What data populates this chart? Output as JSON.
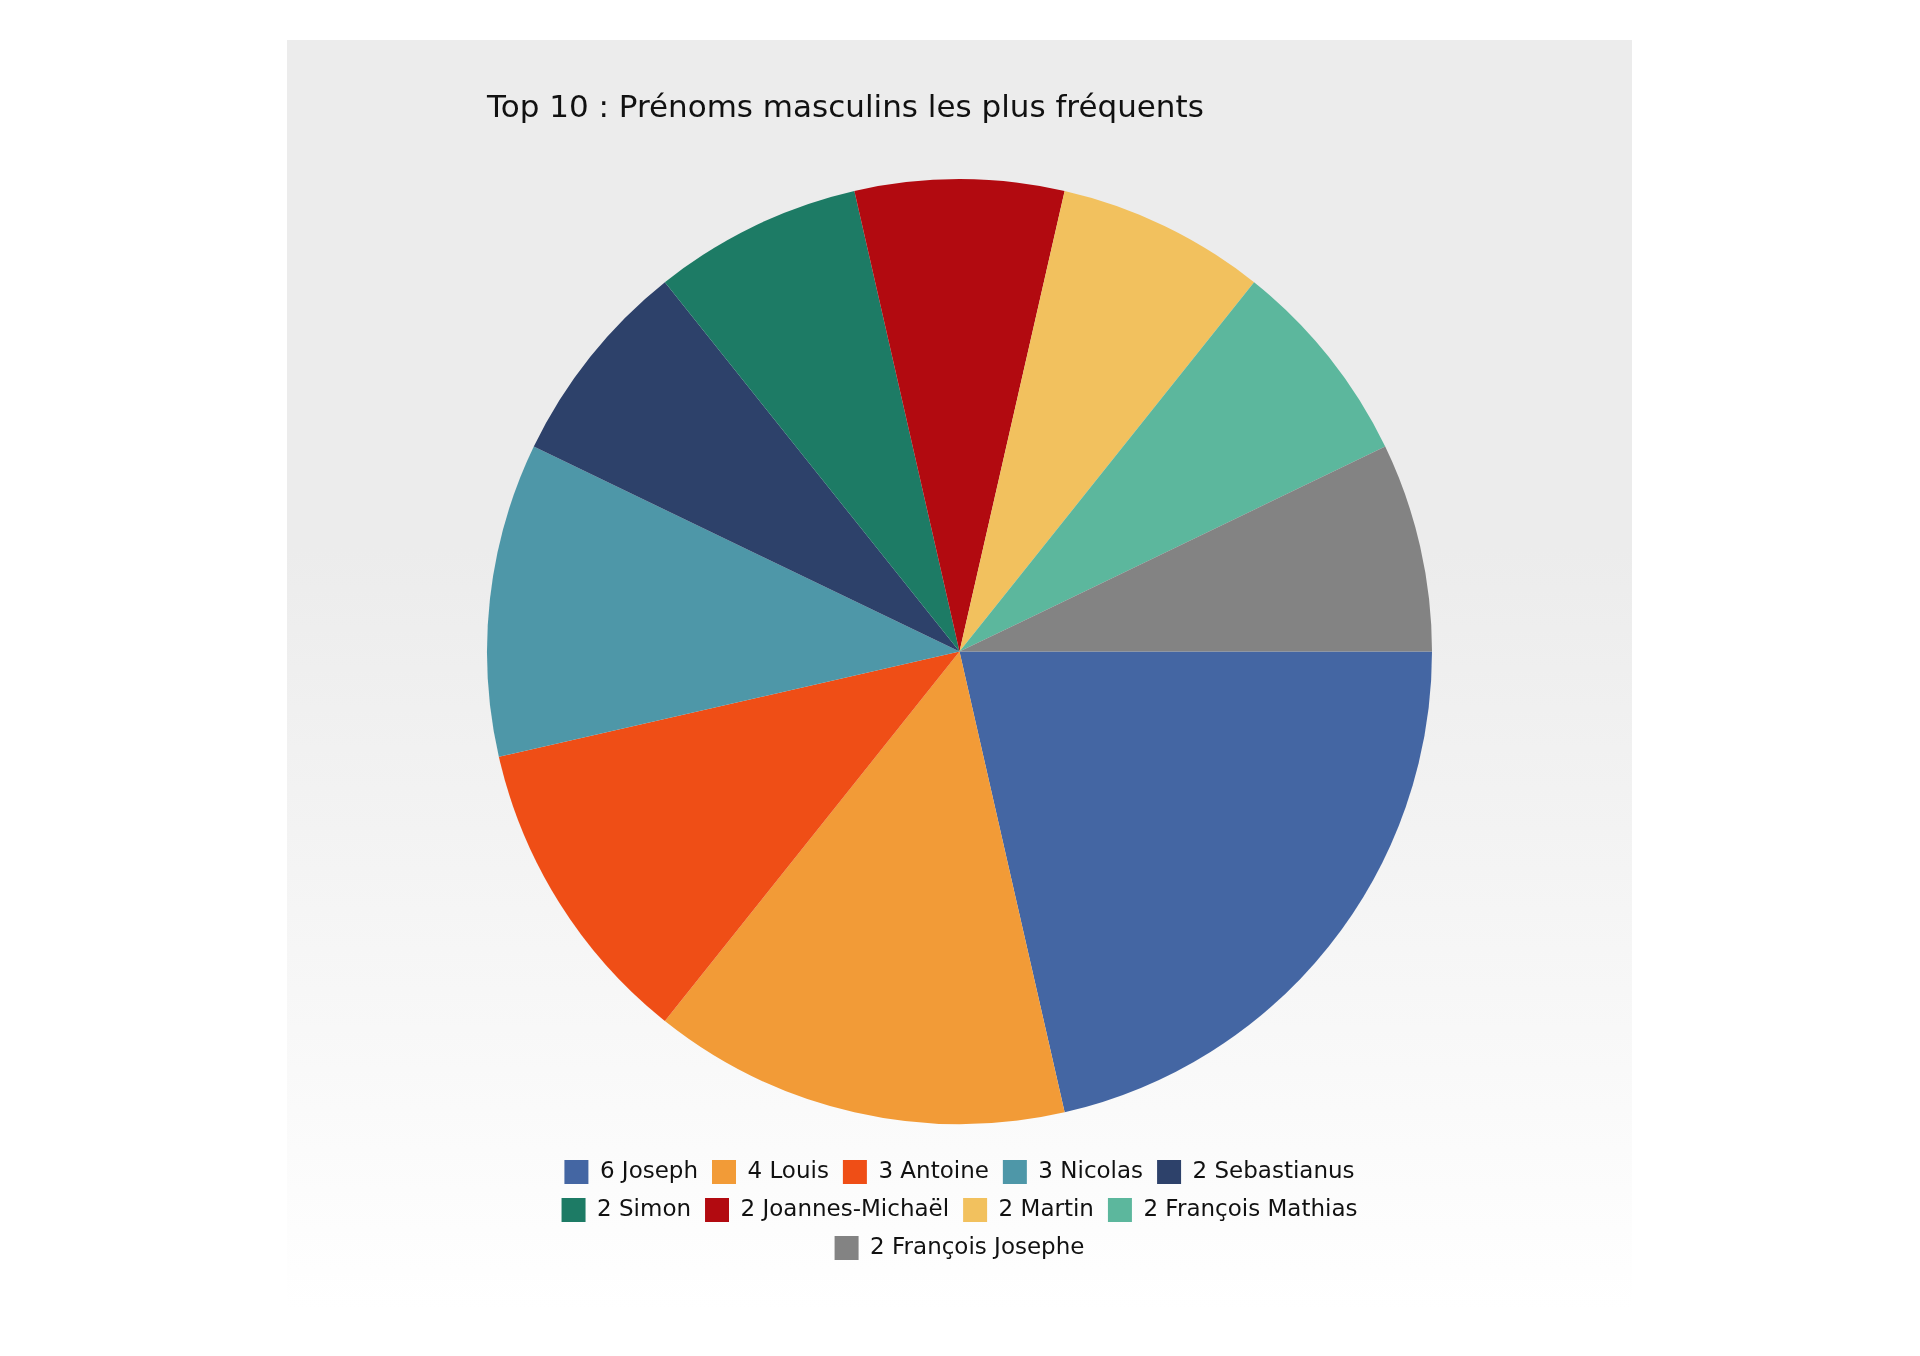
{
  "chart_data": {
    "type": "pie",
    "title": "Top 10 : Prénoms masculins les plus fréquents",
    "categories": [
      "6 Joseph",
      "4 Louis",
      "3 Antoine",
      "3 Nicolas",
      "2 Sebastianus",
      "2 Simon",
      "2 Joannes-Michaël",
      "2 Martin",
      "2 François Mathias",
      "2 François Josephe"
    ],
    "values": [
      6,
      4,
      3,
      3,
      2,
      2,
      2,
      2,
      2,
      2
    ],
    "colors": [
      "#4466a3",
      "#f29b37",
      "#ef4e16",
      "#4e97a8",
      "#2d416a",
      "#1d7b65",
      "#b20a10",
      "#f2c15e",
      "#5cb79d",
      "#838383"
    ],
    "legend": "bottom"
  }
}
